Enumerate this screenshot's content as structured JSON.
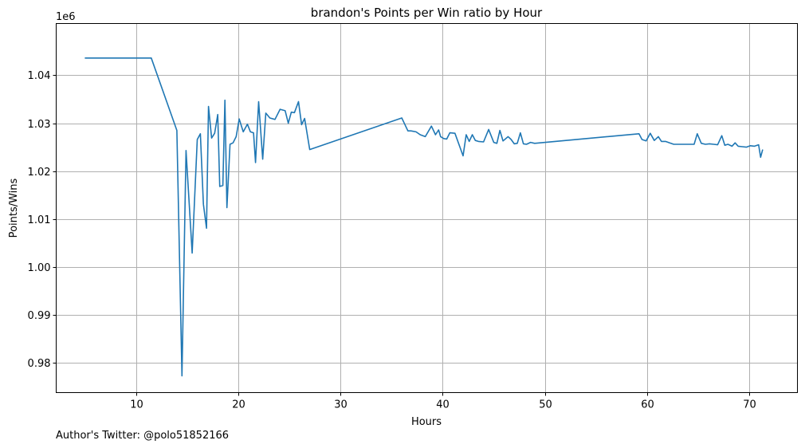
{
  "chart_data": {
    "type": "line",
    "title": "brandon's Points per Win ratio by Hour",
    "xlabel": "Hours",
    "ylabel": "Points/Wins",
    "y_scale_label": "1e6",
    "footer": "Author's Twitter: @polo51852166",
    "xlim": [
      2.2,
      74.7
    ],
    "ylim": [
      0.9738,
      1.0508
    ],
    "x_ticks": [
      10,
      20,
      30,
      40,
      50,
      60,
      70
    ],
    "x_tick_labels": [
      "10",
      "20",
      "30",
      "40",
      "50",
      "60",
      "70"
    ],
    "y_ticks": [
      0.98,
      0.99,
      1.0,
      1.01,
      1.02,
      1.03,
      1.04
    ],
    "y_tick_labels": [
      "0.98",
      "0.99",
      "1.00",
      "1.01",
      "1.02",
      "1.03",
      "1.04"
    ],
    "grid": true,
    "color": "#1f77b4",
    "x": [
      5.0,
      11.5,
      14.0,
      14.5,
      14.9,
      15.5,
      16.0,
      16.3,
      16.6,
      16.9,
      17.1,
      17.4,
      17.7,
      18.0,
      18.2,
      18.5,
      18.7,
      18.9,
      19.2,
      19.5,
      19.8,
      20.1,
      20.5,
      20.9,
      21.2,
      21.5,
      21.7,
      22.0,
      22.4,
      22.7,
      23.1,
      23.6,
      24.1,
      24.6,
      24.9,
      25.2,
      25.5,
      25.9,
      26.2,
      26.5,
      27.0,
      36.0,
      36.6,
      36.9,
      37.4,
      37.8,
      38.3,
      38.9,
      39.3,
      39.6,
      39.8,
      40.1,
      40.4,
      40.7,
      41.2,
      42.0,
      42.3,
      42.6,
      42.9,
      43.2,
      43.5,
      44.0,
      44.5,
      45.0,
      45.3,
      45.6,
      45.9,
      46.4,
      46.7,
      47.0,
      47.3,
      47.6,
      47.9,
      48.2,
      48.6,
      49.0,
      59.2,
      59.5,
      59.9,
      60.3,
      60.7,
      61.1,
      61.4,
      61.8,
      62.2,
      62.6,
      63.0,
      63.5,
      63.9,
      64.3,
      64.6,
      64.9,
      65.3,
      65.7,
      66.1,
      66.5,
      66.9,
      67.3,
      67.6,
      67.9,
      68.3,
      68.6,
      68.9,
      69.3,
      69.7,
      70.1,
      70.5,
      70.9,
      71.1,
      71.3
    ],
    "values": [
      1.0436,
      1.0436,
      1.0285,
      0.9773,
      1.0243,
      1.0029,
      1.0266,
      1.0278,
      1.0131,
      1.0081,
      1.0335,
      1.0269,
      1.0279,
      1.0318,
      1.0168,
      1.017,
      1.0348,
      1.0124,
      1.0256,
      1.0259,
      1.0272,
      1.0309,
      1.0282,
      1.0298,
      1.0282,
      1.028,
      1.0218,
      1.0345,
      1.0225,
      1.0321,
      1.0311,
      1.0308,
      1.0329,
      1.0326,
      1.03,
      1.0323,
      1.0322,
      1.0345,
      1.0297,
      1.031,
      1.0245,
      1.0311,
      1.0284,
      1.0284,
      1.0282,
      1.0276,
      1.0272,
      1.0294,
      1.0276,
      1.0286,
      1.0272,
      1.0268,
      1.0267,
      1.028,
      1.0279,
      1.0232,
      1.0276,
      1.0262,
      1.0276,
      1.0264,
      1.0262,
      1.0261,
      1.0287,
      1.026,
      1.0258,
      1.0285,
      1.0263,
      1.0272,
      1.0266,
      1.0257,
      1.0258,
      1.028,
      1.0257,
      1.0256,
      1.026,
      1.0258,
      1.0278,
      1.0266,
      1.0263,
      1.0279,
      1.0264,
      1.0272,
      1.0262,
      1.0262,
      1.0259,
      1.0256,
      1.0256,
      1.0256,
      1.0256,
      1.0256,
      1.0256,
      1.0278,
      1.0258,
      1.0256,
      1.0257,
      1.0256,
      1.0255,
      1.0274,
      1.0254,
      1.0256,
      1.0252,
      1.0259,
      1.0252,
      1.0251,
      1.025,
      1.0253,
      1.0252,
      1.0255,
      1.0229,
      1.0245
    ]
  }
}
